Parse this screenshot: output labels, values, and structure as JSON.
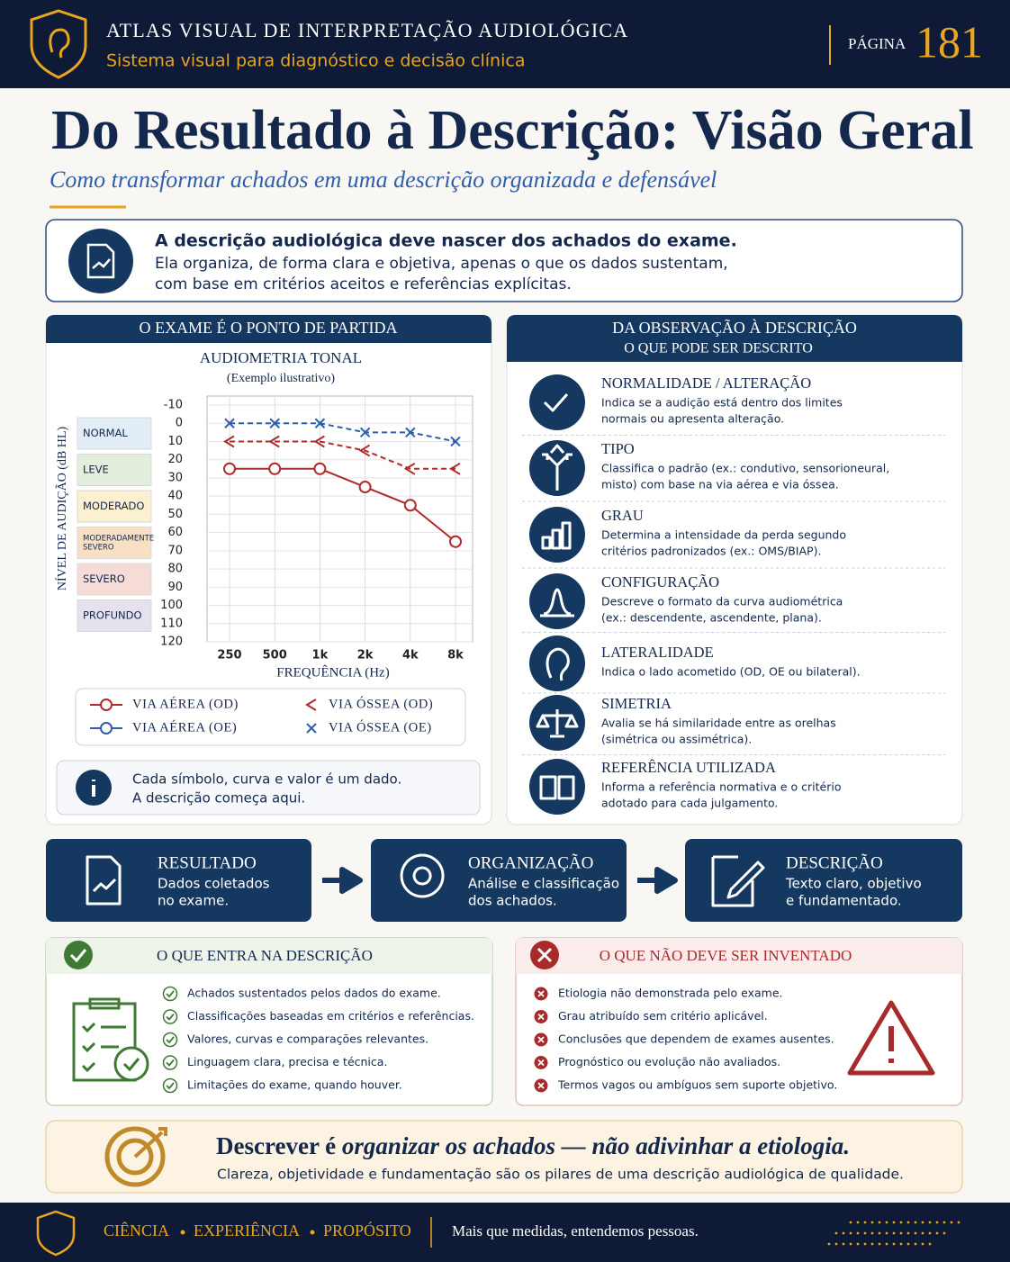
{
  "header": {
    "title": "ATLAS VISUAL DE INTERPRETAÇÃO AUDIOLÓGICA",
    "subtitle": "Sistema visual para diagnóstico e decisão clínica",
    "page_label": "PÁGINA",
    "page_number": 181
  },
  "title": "Do Resultado à Descrição: Visão Geral",
  "subtitle": "Como transformar achados em uma descrição organizada e defensável",
  "intro": {
    "heading": "A descrição audiológica deve nascer dos achados do exame.",
    "lines": [
      "Ela organiza, de forma clara e objetiva, apenas o que os dados sustentam,",
      "com base em critérios aceitos e referências explícitas."
    ]
  },
  "exam_panel": {
    "heading": "O EXAME É O PONTO DE PARTIDA",
    "note": [
      "Cada símbolo, curva e valor é um dado.",
      "A descrição começa aqui."
    ]
  },
  "chart_data": {
    "type": "line",
    "title": "AUDIOMETRIA TONAL",
    "subtitle": "(Exemplo ilustrativo)",
    "y_label": "NÍVEL DE AUDIÇÃO (dB HL)",
    "x_label": "FREQUÊNCIA (Hz)",
    "categories": [
      "250",
      "500",
      "1k",
      "2k",
      "4k",
      "8k"
    ],
    "ylim": [
      -10,
      120
    ],
    "y_inverted": true,
    "yticks": [
      -10,
      0,
      10,
      20,
      30,
      40,
      50,
      60,
      70,
      80,
      90,
      100,
      110,
      120
    ],
    "grid": true,
    "bands": [
      {
        "label": [
          "NORMAL"
        ],
        "color": "#e3edf7"
      },
      {
        "label": [
          "LEVE"
        ],
        "color": "#e3efdc"
      },
      {
        "label": [
          "MODERADO"
        ],
        "color": "#fbf0cf"
      },
      {
        "label": [
          "MODERADAMENTE",
          "SEVERO"
        ],
        "color": "#f8e0c4"
      },
      {
        "label": [
          "SEVERO"
        ],
        "color": "#f6dcd6"
      },
      {
        "label": [
          "PROFUNDO"
        ],
        "color": "#e6e1ef"
      }
    ],
    "series": [
      {
        "name": "VIA AÉREA (OD)",
        "color": "#b02a2a",
        "marker": "circle",
        "dashed": false,
        "values": [
          25,
          25,
          25,
          35,
          45,
          65
        ]
      },
      {
        "name": "VIA AÉREA (OE)",
        "color": "#2f5fa8",
        "marker": "circle",
        "dashed": false,
        "values": [
          null,
          null,
          null,
          null,
          null,
          null
        ]
      },
      {
        "name": "VIA ÓSSEA (OD)",
        "color": "#b02a2a",
        "marker": "less-than",
        "dashed": true,
        "values": [
          10,
          10,
          10,
          15,
          25,
          25
        ]
      },
      {
        "name": "VIA ÓSSEA (OE)",
        "color": "#2f5fa8",
        "marker": "cross",
        "dashed": true,
        "values": [
          0,
          0,
          0,
          5,
          5,
          10
        ]
      }
    ]
  },
  "description_panel": {
    "heading": "DA OBSERVAÇÃO À DESCRIÇÃO",
    "subheading": "O QUE PODE SER DESCRITO",
    "items": [
      {
        "title": "NORMALIDADE / ALTERAÇÃO",
        "lines": [
          "Indica se a audição está dentro dos limites",
          "normais ou apresenta alteração."
        ]
      },
      {
        "title": "TIPO",
        "lines": [
          "Classifica o padrão (ex.: condutivo, sensorioneural,",
          "misto) com base na via aérea e via óssea."
        ]
      },
      {
        "title": "GRAU",
        "lines": [
          "Determina a intensidade da perda segundo",
          "critérios padronizados (ex.: OMS/BIAP)."
        ]
      },
      {
        "title": "CONFIGURAÇÃO",
        "lines": [
          "Descreve o formato da curva audiométrica",
          "(ex.: descendente, ascendente, plana)."
        ]
      },
      {
        "title": "LATERALIDADE",
        "lines": [
          "Indica o lado acometido (OD, OE ou bilateral)."
        ]
      },
      {
        "title": "SIMETRIA",
        "lines": [
          "Avalia se há similaridade entre as orelhas",
          "(simétrica ou assimétrica)."
        ]
      },
      {
        "title": "REFERÊNCIA UTILIZADA",
        "lines": [
          "Informa a referência normativa e o critério",
          "adotado para cada julgamento."
        ]
      }
    ]
  },
  "flow": [
    {
      "title": "RESULTADO",
      "lines": [
        "Dados coletados",
        "no exame."
      ]
    },
    {
      "title": "ORGANIZAÇÃO",
      "lines": [
        "Análise e classificação",
        "dos achados."
      ]
    },
    {
      "title": "DESCRIÇÃO",
      "lines": [
        "Texto claro, objetivo",
        "e fundamentado."
      ]
    }
  ],
  "include": {
    "heading": "O QUE ENTRA NA DESCRIÇÃO",
    "items": [
      "Achados sustentados pelos dados do exame.",
      "Classificações baseadas em critérios e referências.",
      "Valores, curvas e comparações relevantes.",
      "Linguagem clara, precisa e técnica.",
      "Limitações do exame, quando houver."
    ]
  },
  "exclude": {
    "heading": "O QUE NÃO DEVE SER INVENTADO",
    "items": [
      "Etiologia não demonstrada pelo exame.",
      "Grau atribuído sem critério aplicável.",
      "Conclusões que dependem de exames ausentes.",
      "Prognóstico ou evolução não avaliados.",
      "Termos vagos ou ambíguos sem suporte objetivo."
    ]
  },
  "conclusion": {
    "plain": "Descrever é ",
    "emphasis": "organizar os achados — não adivinhar a etiologia.",
    "text": "Clareza, objetividade e fundamentação são os pilares de uma descrição audiológica de qualidade."
  },
  "footer": {
    "values": [
      "CIÊNCIA",
      "EXPERIÊNCIA",
      "PROPÓSITO"
    ],
    "tagline": "Mais que medidas, entendemos pessoas."
  }
}
